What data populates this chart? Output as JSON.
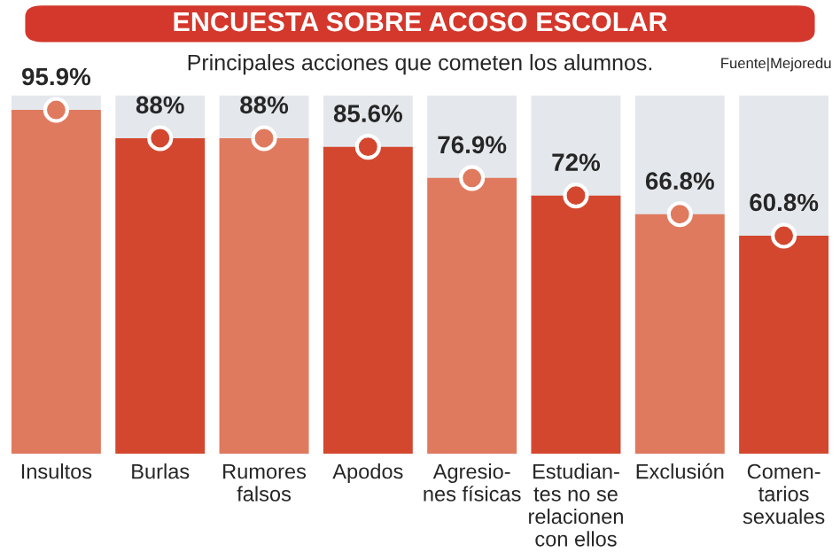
{
  "chart_data": {
    "type": "bar",
    "title": "ENCUESTA SOBRE ACOSO ESCOLAR",
    "subtitle": "Principales acciones que cometen los alumnos.",
    "annotations": [
      "Fuente|Mejoredu"
    ],
    "categories": [
      "Insultos",
      "Burlas",
      "Rumores\nfalsos",
      "Apodos",
      "Agresio-\nnes físicas",
      "Estudian-\ntes no se\nrelacionen\ncon ellos",
      "Exclusión",
      "Comen-\ntarios\nsexuales"
    ],
    "series": [
      {
        "values": [
          95.9,
          88,
          88,
          85.6,
          76.9,
          72,
          66.8,
          60.8
        ],
        "value_labels": [
          "95.9%",
          "88%",
          "88%",
          "85.6%",
          "76.9%",
          "72%",
          "66.8%",
          "60.8%"
        ],
        "colors": [
          "#e07a5f",
          "#d4472f",
          "#e07a5f",
          "#d4472f",
          "#e07a5f",
          "#d4472f",
          "#e07a5f",
          "#d4472f"
        ]
      },
      {
        "type": "scatter",
        "marker": "circle",
        "x": [
          "Insultos",
          "Burlas",
          "Rumores\nfalsos",
          "Apodos",
          "Agresio-\nnes físicas",
          "Estudian-\ntes no se\nrelacionen\ncon ellos",
          "Exclusión",
          "Comen-\ntarios\nsexuales"
        ],
        "values": [
          95.9,
          88,
          88,
          85.6,
          76.9,
          72,
          66.8,
          60.8
        ],
        "colors": [
          "#e07a5f",
          "#d4472f",
          "#e07a5f",
          "#d4472f",
          "#e07a5f",
          "#d4472f",
          "#e07a5f",
          "#d4472f"
        ]
      }
    ],
    "ylim": [
      0,
      100
    ],
    "tick_labels": "x",
    "grid": false,
    "legend": false
  }
}
